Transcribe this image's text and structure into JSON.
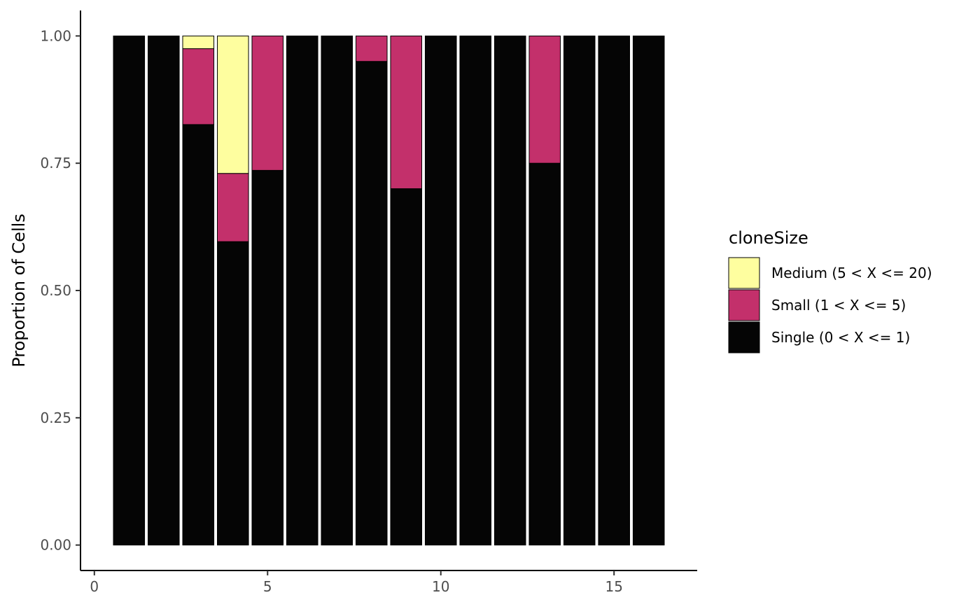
{
  "chart_data": {
    "type": "bar",
    "stacked": true,
    "x": [
      1,
      2,
      3,
      4,
      5,
      6,
      7,
      8,
      9,
      10,
      11,
      12,
      13,
      14,
      15,
      16
    ],
    "series": [
      {
        "name": "Single (0 < X <= 1)",
        "color": "#050505",
        "values": [
          1.0,
          1.0,
          0.826,
          0.596,
          0.736,
          1.0,
          1.0,
          0.95,
          0.7,
          1.0,
          1.0,
          1.0,
          0.75,
          1.0,
          1.0,
          1.0
        ]
      },
      {
        "name": "Small (1 < X <= 5)",
        "color": "#C3306B",
        "values": [
          0,
          0,
          0.149,
          0.134,
          0.264,
          0,
          0,
          0.05,
          0.3,
          0,
          0,
          0,
          0.25,
          0,
          0,
          0
        ]
      },
      {
        "name": "Medium (5 < X <= 20)",
        "color": "#FEFE9F",
        "values": [
          0,
          0,
          0.025,
          0.27,
          0,
          0,
          0,
          0,
          0,
          0,
          0,
          0,
          0,
          0,
          0,
          0
        ]
      }
    ],
    "xticks": [
      "0",
      "5",
      "10",
      "15"
    ],
    "yticks": [
      "0.00",
      "0.25",
      "0.50",
      "0.75",
      "1.00"
    ],
    "xlim": [
      -0.4,
      17.4
    ],
    "ylim": [
      -0.05,
      1.05
    ],
    "xlabel": "",
    "ylabel": "Proportion of Cells",
    "legend": {
      "title": "cloneSize",
      "position": "right",
      "order": [
        "Medium (5 < X <= 20)",
        "Small (1 < X <= 5)",
        "Single (0 < X <= 1)"
      ]
    },
    "grid": false
  }
}
